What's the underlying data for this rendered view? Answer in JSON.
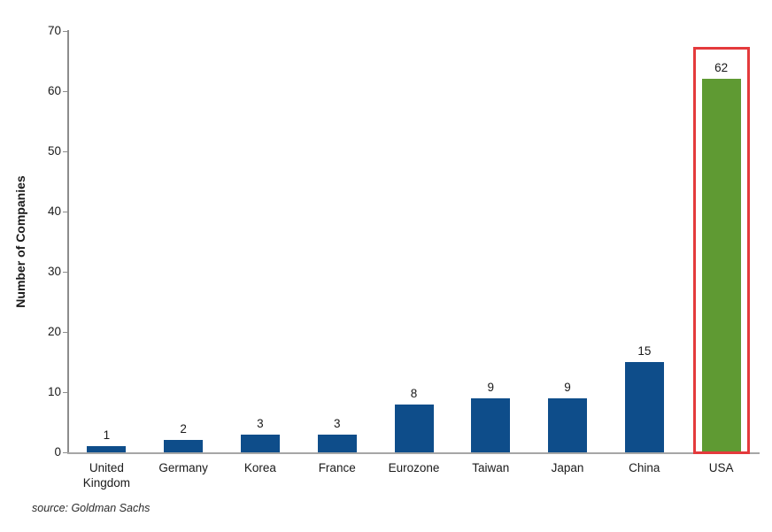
{
  "chart_data": {
    "type": "bar",
    "categories": [
      "United Kingdom",
      "Germany",
      "Korea",
      "France",
      "Eurozone",
      "Taiwan",
      "Japan",
      "China",
      "USA"
    ],
    "values": [
      1,
      2,
      3,
      3,
      8,
      9,
      9,
      15,
      62
    ],
    "data_labels": [
      "1",
      "2",
      "3",
      "3",
      "8",
      "9",
      "9",
      "15",
      "62"
    ],
    "title": "",
    "xlabel": "",
    "ylabel": "Number of Companies",
    "ylim": [
      0,
      70
    ],
    "ytick_step": 10,
    "ytick_labels": [
      "0",
      "10",
      "20",
      "30",
      "40",
      "50",
      "60",
      "70"
    ],
    "grid": false,
    "legend": "none",
    "bar_color": "#0e4d8a",
    "axis_color": "#8c8c8c",
    "baseline_color": "#a6a6a6",
    "text_color": "#1a1a1a",
    "highlight": {
      "category": "USA",
      "bar_color": "#5f9a33",
      "box_color": "#e43a3c"
    }
  },
  "source": {
    "text": "source: Goldman Sachs"
  }
}
